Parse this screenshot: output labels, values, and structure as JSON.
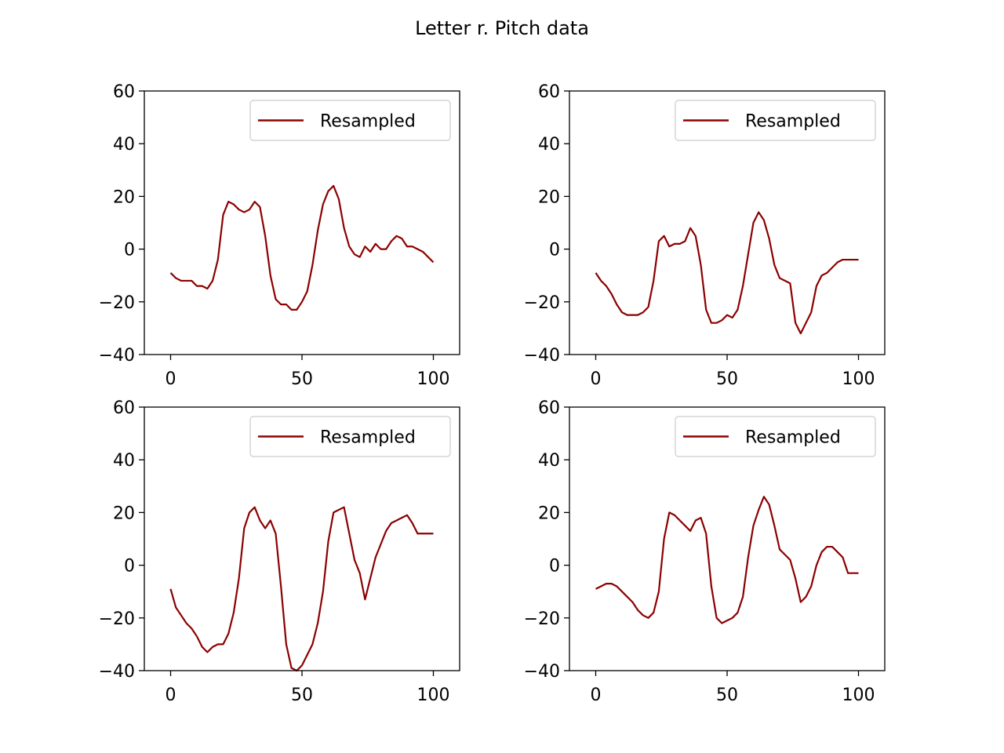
{
  "title": "Letter r. Pitch data",
  "colors": {
    "line": "#8b0000",
    "axes": "#000000",
    "background": "#ffffff",
    "legend_border": "#cccccc"
  },
  "chart_data": [
    {
      "type": "line",
      "legend": "Resampled",
      "legend_loc": "upper right",
      "xlim": [
        -10,
        110
      ],
      "ylim": [
        -40,
        60
      ],
      "xticks": [
        0,
        50,
        100
      ],
      "yticks": [
        -40,
        -20,
        0,
        20,
        40,
        60
      ],
      "x": [
        0,
        2,
        4,
        6,
        8,
        10,
        12,
        14,
        16,
        18,
        20,
        22,
        24,
        26,
        28,
        30,
        32,
        34,
        36,
        38,
        40,
        42,
        44,
        46,
        48,
        50,
        52,
        54,
        56,
        58,
        60,
        62,
        64,
        66,
        68,
        70,
        72,
        74,
        76,
        78,
        80,
        82,
        84,
        86,
        88,
        90,
        92,
        94,
        96,
        98,
        100
      ],
      "y": [
        -9,
        -11,
        -12,
        -12,
        -12,
        -14,
        -14,
        -15,
        -12,
        -4,
        13,
        18,
        17,
        15,
        14,
        15,
        18,
        16,
        5,
        -10,
        -19,
        -21,
        -21,
        -23,
        -23,
        -20,
        -16,
        -6,
        7,
        17,
        22,
        24,
        19,
        8,
        1,
        -2,
        -3,
        1,
        -1,
        2,
        0,
        0,
        3,
        5,
        4,
        1,
        1,
        0,
        -1,
        -3,
        -5
      ]
    },
    {
      "type": "line",
      "legend": "Resampled",
      "legend_loc": "upper right",
      "xlim": [
        -10,
        110
      ],
      "ylim": [
        -40,
        60
      ],
      "xticks": [
        0,
        50,
        100
      ],
      "yticks": [
        -40,
        -20,
        0,
        20,
        40,
        60
      ],
      "x": [
        0,
        2,
        4,
        6,
        8,
        10,
        12,
        14,
        16,
        18,
        20,
        22,
        24,
        26,
        28,
        30,
        32,
        34,
        36,
        38,
        40,
        42,
        44,
        46,
        48,
        50,
        52,
        54,
        56,
        58,
        60,
        62,
        64,
        66,
        68,
        70,
        72,
        74,
        76,
        78,
        80,
        82,
        84,
        86,
        88,
        90,
        92,
        94,
        96,
        98,
        100
      ],
      "y": [
        -9,
        -12,
        -14,
        -17,
        -21,
        -24,
        -25,
        -25,
        -25,
        -24,
        -22,
        -12,
        3,
        5,
        1,
        2,
        2,
        3,
        8,
        5,
        -6,
        -23,
        -28,
        -28,
        -27,
        -25,
        -26,
        -23,
        -14,
        -2,
        10,
        14,
        11,
        4,
        -6,
        -11,
        -12,
        -13,
        -28,
        -32,
        -28,
        -24,
        -14,
        -10,
        -9,
        -7,
        -5,
        -4,
        -4,
        -4,
        -4
      ]
    },
    {
      "type": "line",
      "legend": "Resampled",
      "legend_loc": "upper right",
      "xlim": [
        -10,
        110
      ],
      "ylim": [
        -40,
        60
      ],
      "xticks": [
        0,
        50,
        100
      ],
      "yticks": [
        -40,
        -20,
        0,
        20,
        40,
        60
      ],
      "x": [
        0,
        2,
        4,
        6,
        8,
        10,
        12,
        14,
        16,
        18,
        20,
        22,
        24,
        26,
        28,
        30,
        32,
        34,
        36,
        38,
        40,
        42,
        44,
        46,
        48,
        50,
        52,
        54,
        56,
        58,
        60,
        62,
        64,
        66,
        68,
        70,
        72,
        74,
        76,
        78,
        80,
        82,
        84,
        86,
        88,
        90,
        92,
        94,
        96,
        98,
        100
      ],
      "y": [
        -9,
        -16,
        -19,
        -22,
        -24,
        -27,
        -31,
        -33,
        -31,
        -30,
        -30,
        -26,
        -18,
        -5,
        14,
        20,
        22,
        17,
        14,
        17,
        12,
        -8,
        -30,
        -39,
        -40,
        -38,
        -34,
        -30,
        -22,
        -10,
        9,
        20,
        21,
        22,
        12,
        2,
        -3,
        -13,
        -5,
        3,
        8,
        13,
        16,
        17,
        18,
        19,
        16,
        12,
        12,
        12,
        12
      ]
    },
    {
      "type": "line",
      "legend": "Resampled",
      "legend_loc": "upper right",
      "xlim": [
        -10,
        110
      ],
      "ylim": [
        -40,
        60
      ],
      "xticks": [
        0,
        50,
        100
      ],
      "yticks": [
        -40,
        -20,
        0,
        20,
        40,
        60
      ],
      "x": [
        0,
        2,
        4,
        6,
        8,
        10,
        12,
        14,
        16,
        18,
        20,
        22,
        24,
        26,
        28,
        30,
        32,
        34,
        36,
        38,
        40,
        42,
        44,
        46,
        48,
        50,
        52,
        54,
        56,
        58,
        60,
        62,
        64,
        66,
        68,
        70,
        72,
        74,
        76,
        78,
        80,
        82,
        84,
        86,
        88,
        90,
        92,
        94,
        96,
        98,
        100
      ],
      "y": [
        -9,
        -8,
        -7,
        -7,
        -8,
        -10,
        -12,
        -14,
        -17,
        -19,
        -20,
        -18,
        -10,
        10,
        20,
        19,
        17,
        15,
        13,
        17,
        18,
        12,
        -8,
        -20,
        -22,
        -21,
        -20,
        -18,
        -12,
        3,
        15,
        21,
        26,
        23,
        15,
        6,
        4,
        2,
        -5,
        -14,
        -12,
        -8,
        0,
        5,
        7,
        7,
        5,
        3,
        -3,
        -3,
        -3
      ]
    }
  ]
}
